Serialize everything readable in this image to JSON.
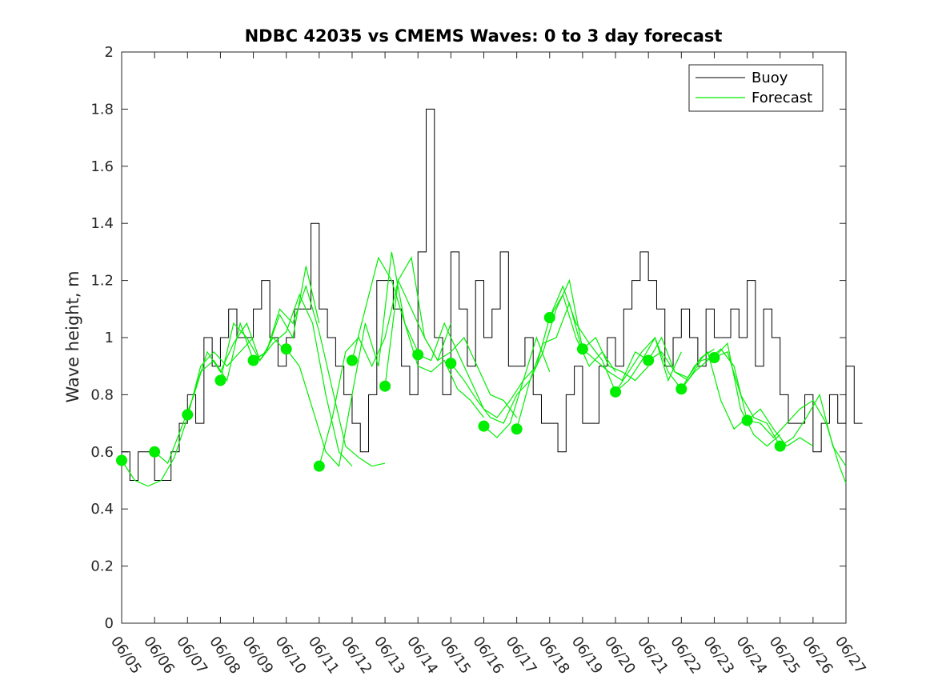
{
  "chart_data": {
    "type": "line",
    "title": "NDBC 42035 vs CMEMS Waves: 0 to 3 day forecast",
    "xlabel": "",
    "ylabel": "Wave height, m",
    "x_range": [
      "06/05",
      "06/27"
    ],
    "x_ticks": [
      "06/05",
      "06/06",
      "06/07",
      "06/08",
      "06/09",
      "06/10",
      "06/11",
      "06/12",
      "06/13",
      "06/14",
      "06/15",
      "06/16",
      "06/17",
      "06/18",
      "06/19",
      "06/20",
      "06/21",
      "06/22",
      "06/23",
      "06/24",
      "06/25",
      "06/26",
      "06/27"
    ],
    "ylim": [
      0,
      2
    ],
    "y_ticks": [
      "0",
      "0.2",
      "0.4",
      "0.6",
      "0.8",
      "1",
      "1.2",
      "1.4",
      "1.6",
      "1.8",
      "2"
    ],
    "grid": false,
    "legend_position": "top-right",
    "colors": {
      "buoy": "#000000",
      "forecast": "#00ee00",
      "axes": "#262626"
    },
    "buoy": {
      "name": "Buoy",
      "x_days": [
        0,
        0.25,
        0.5,
        0.75,
        1,
        1.25,
        1.5,
        1.75,
        2,
        2.25,
        2.5,
        2.75,
        3,
        3.25,
        3.5,
        3.75,
        4,
        4.25,
        4.5,
        4.75,
        5,
        5.25,
        5.5,
        5.75,
        6,
        6.25,
        6.5,
        6.75,
        7,
        7.25,
        7.5,
        7.75,
        8,
        8.25,
        8.5,
        8.75,
        9,
        9.25,
        9.5,
        9.75,
        10,
        10.25,
        10.5,
        10.75,
        11,
        11.25,
        11.5,
        11.75,
        12,
        12.25,
        12.5,
        12.75,
        13,
        13.25,
        13.5,
        13.75,
        14,
        14.25,
        14.5,
        14.75,
        15,
        15.25,
        15.5,
        15.75,
        16,
        16.25,
        16.5,
        16.75,
        17,
        17.25,
        17.5,
        17.75,
        18,
        18.25,
        18.5,
        18.75,
        19,
        19.25,
        19.5,
        19.75,
        20,
        20.25,
        20.5,
        20.75,
        21,
        21.25,
        21.5,
        21.75,
        22,
        22.25
      ],
      "y": [
        0.6,
        0.5,
        0.6,
        0.6,
        0.5,
        0.5,
        0.6,
        0.7,
        0.8,
        0.7,
        1.0,
        0.9,
        1.0,
        1.1,
        1.0,
        1.0,
        1.1,
        1.2,
        1.0,
        0.9,
        1.0,
        1.1,
        1.1,
        1.4,
        1.1,
        1.0,
        0.9,
        0.8,
        0.7,
        0.6,
        0.8,
        1.2,
        1.2,
        1.1,
        0.9,
        0.8,
        1.3,
        1.8,
        1.0,
        0.8,
        1.3,
        1.1,
        0.9,
        1.2,
        1.0,
        1.1,
        1.3,
        0.9,
        0.9,
        1.0,
        0.8,
        0.7,
        0.7,
        0.6,
        0.8,
        0.9,
        0.7,
        0.7,
        0.9,
        1.0,
        0.9,
        1.1,
        1.2,
        1.3,
        1.2,
        1.1,
        0.9,
        1.0,
        1.1,
        1.0,
        0.9,
        1.1,
        1.0,
        1.0,
        1.1,
        1.0,
        1.2,
        0.9,
        1.1,
        1.0,
        0.8,
        0.7,
        0.7,
        0.8,
        0.6,
        0.7,
        0.8,
        0.7,
        0.9,
        0.7
      ]
    },
    "forecast": {
      "name": "Forecast",
      "series": [
        {
          "x_days": [
            0,
            0.4,
            0.8,
            1.2,
            1.6,
            2.0,
            2.4,
            2.8,
            3.2,
            3.6,
            4.0
          ],
          "y": [
            0.57,
            0.5,
            0.48,
            0.5,
            0.58,
            0.72,
            0.9,
            0.95,
            0.9,
            0.95,
            1.0
          ]
        },
        {
          "x_days": [
            1,
            1.4,
            1.8,
            2.2,
            2.6,
            3.0,
            3.4,
            3.8,
            4.2,
            4.6,
            5.0
          ],
          "y": [
            0.6,
            0.56,
            0.68,
            0.8,
            0.95,
            0.88,
            0.98,
            1.05,
            0.92,
            1.0,
            0.95
          ]
        },
        {
          "x_days": [
            2,
            2.4,
            2.8,
            3.2,
            3.6,
            4.0,
            4.4,
            4.8,
            5.2,
            5.6,
            6.0
          ],
          "y": [
            0.73,
            0.88,
            0.92,
            0.85,
            1.05,
            0.92,
            0.95,
            1.08,
            1.0,
            1.25,
            1.05
          ]
        },
        {
          "x_days": [
            3,
            3.4,
            3.8,
            4.2,
            4.6,
            5.0,
            5.4,
            5.8,
            6.2,
            6.6,
            7.0
          ],
          "y": [
            0.85,
            1.05,
            1.0,
            0.92,
            0.98,
            1.02,
            1.15,
            1.05,
            0.8,
            0.6,
            0.55
          ]
        },
        {
          "x_days": [
            4,
            4.4,
            4.8,
            5.2,
            5.6,
            6.0,
            6.4,
            6.8,
            7.2,
            7.6,
            8.0
          ],
          "y": [
            0.92,
            0.95,
            1.1,
            1.05,
            1.18,
            1.02,
            0.82,
            0.62,
            0.58,
            0.55,
            0.56
          ]
        },
        {
          "x_days": [
            5,
            5.4,
            5.8,
            6.2,
            6.6,
            7.0,
            7.4,
            7.8,
            8.2,
            8.6,
            9.0
          ],
          "y": [
            0.96,
            0.9,
            0.75,
            0.6,
            0.55,
            0.8,
            1.05,
            0.9,
            1.3,
            1.05,
            0.95
          ]
        },
        {
          "x_days": [
            6,
            6.4,
            6.8,
            7.2,
            7.6,
            8.0,
            8.4,
            8.8,
            9.2,
            9.6,
            10.0
          ],
          "y": [
            0.55,
            0.72,
            0.95,
            1.0,
            0.9,
            1.0,
            1.2,
            1.28,
            1.0,
            0.92,
            1.05
          ]
        },
        {
          "x_days": [
            7,
            7.4,
            7.8,
            8.2,
            8.6,
            9.0,
            9.4,
            9.8,
            10.2,
            10.6,
            11.0
          ],
          "y": [
            0.92,
            1.1,
            1.28,
            1.2,
            1.05,
            0.9,
            0.88,
            0.92,
            0.82,
            0.78,
            0.72
          ]
        },
        {
          "x_days": [
            8,
            8.4,
            8.8,
            9.2,
            9.6,
            10.0,
            10.4,
            10.8,
            11.2,
            11.6,
            12.0
          ],
          "y": [
            0.83,
            1.2,
            1.1,
            1.0,
            0.92,
            0.95,
            1.0,
            0.9,
            0.8,
            0.78,
            0.72
          ]
        },
        {
          "x_days": [
            9,
            9.4,
            9.8,
            10.2,
            10.6,
            11.0,
            11.4,
            11.8,
            12.2,
            12.6,
            13.0
          ],
          "y": [
            0.94,
            0.92,
            1.05,
            0.95,
            0.85,
            0.75,
            0.72,
            0.78,
            0.85,
            1.0,
            0.88
          ]
        },
        {
          "x_days": [
            10,
            10.4,
            10.8,
            11.2,
            11.6,
            12.0,
            12.4,
            12.8,
            13.2,
            13.6,
            14.0
          ],
          "y": [
            0.91,
            0.85,
            0.78,
            0.72,
            0.7,
            0.8,
            0.85,
            0.98,
            1.0,
            1.12,
            0.95
          ]
        },
        {
          "x_days": [
            11,
            11.4,
            11.8,
            12.2,
            12.6,
            13.0,
            13.4,
            13.8,
            14.2,
            14.6,
            15.0
          ],
          "y": [
            0.69,
            0.65,
            0.7,
            0.85,
            0.9,
            1.07,
            1.15,
            1.0,
            0.9,
            0.95,
            0.88
          ]
        },
        {
          "x_days": [
            12,
            12.4,
            12.8,
            13.2,
            13.6,
            14.0,
            14.4,
            14.8,
            15.2,
            15.6,
            16.0
          ],
          "y": [
            0.68,
            0.85,
            0.95,
            1.1,
            1.2,
            0.96,
            1.0,
            0.9,
            0.88,
            0.85,
            0.9
          ]
        },
        {
          "x_days": [
            13,
            13.4,
            13.8,
            14.2,
            14.6,
            15.0,
            15.4,
            15.8,
            16.2,
            16.6,
            17.0
          ],
          "y": [
            1.07,
            1.18,
            1.05,
            0.98,
            0.92,
            0.81,
            0.88,
            0.95,
            1.0,
            0.85,
            0.95
          ]
        },
        {
          "x_days": [
            14,
            14.4,
            14.8,
            15.2,
            15.6,
            16.0,
            16.4,
            16.8,
            17.2,
            17.6,
            18.0
          ],
          "y": [
            0.96,
            0.92,
            0.88,
            0.85,
            0.95,
            0.92,
            1.0,
            0.88,
            0.86,
            0.93,
            0.96
          ]
        },
        {
          "x_days": [
            15,
            15.4,
            15.8,
            16.2,
            16.6,
            17.0,
            17.4,
            17.8,
            18.2,
            18.6,
            19.0
          ],
          "y": [
            0.81,
            0.85,
            0.92,
            1.0,
            0.88,
            0.82,
            0.9,
            0.95,
            0.78,
            0.68,
            0.72
          ]
        },
        {
          "x_days": [
            16,
            16.4,
            16.8,
            17.2,
            17.6,
            18.0,
            18.4,
            18.8,
            19.2,
            19.6,
            20.0
          ],
          "y": [
            0.92,
            0.95,
            0.88,
            0.85,
            0.92,
            0.93,
            0.98,
            0.75,
            0.66,
            0.62,
            0.66
          ]
        },
        {
          "x_days": [
            17,
            17.4,
            17.8,
            18.2,
            18.6,
            19.0,
            19.4,
            19.8,
            20.2,
            20.6,
            21.0
          ],
          "y": [
            0.82,
            0.88,
            0.92,
            0.96,
            0.9,
            0.71,
            0.75,
            0.68,
            0.62,
            0.65,
            0.62
          ]
        },
        {
          "x_days": [
            18,
            18.4,
            18.8,
            19.2,
            19.6,
            20.0,
            20.4,
            20.8,
            21.2,
            21.6,
            22.0
          ],
          "y": [
            0.93,
            0.95,
            0.8,
            0.72,
            0.7,
            0.62,
            0.65,
            0.72,
            0.8,
            0.62,
            0.55
          ]
        },
        {
          "x_days": [
            19,
            19.4,
            19.8,
            20.2,
            20.6,
            21.0,
            21.4,
            21.8,
            22.0
          ],
          "y": [
            0.71,
            0.7,
            0.65,
            0.7,
            0.75,
            0.78,
            0.7,
            0.55,
            0.49
          ]
        }
      ],
      "markers": {
        "x_days": [
          0,
          1,
          2,
          3,
          4,
          5,
          6,
          7,
          8,
          9,
          10,
          11,
          12,
          13,
          14,
          15,
          16,
          17,
          18,
          19,
          20
        ],
        "y": [
          0.57,
          0.6,
          0.73,
          0.85,
          0.92,
          0.96,
          0.55,
          0.92,
          0.83,
          0.94,
          0.91,
          0.69,
          0.68,
          1.07,
          0.96,
          0.81,
          0.92,
          0.82,
          0.93,
          0.71,
          0.62
        ]
      }
    }
  }
}
